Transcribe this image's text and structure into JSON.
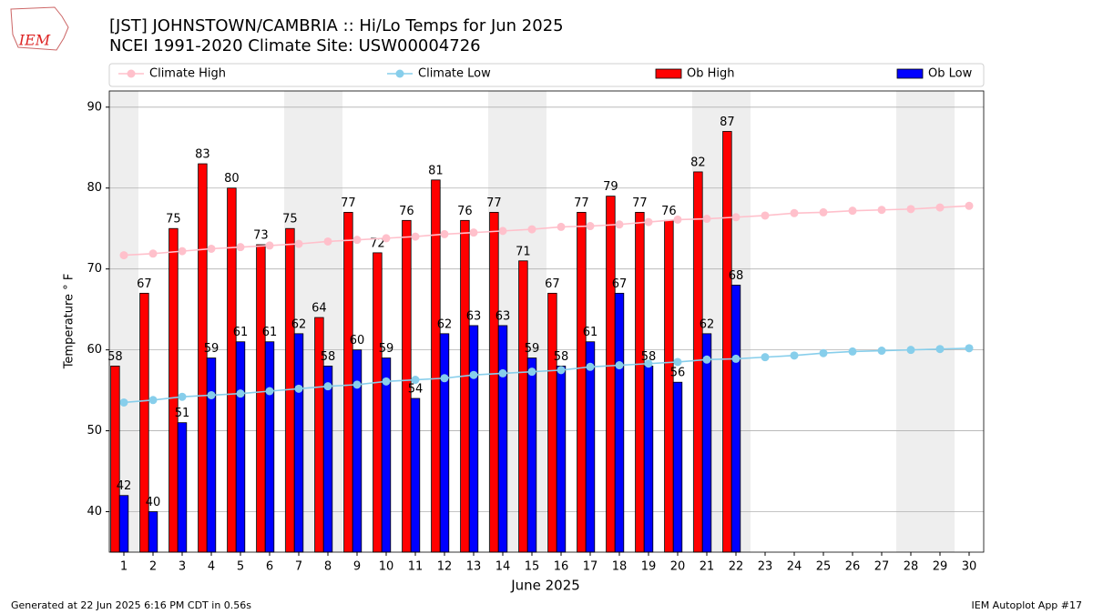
{
  "logo": "IEM",
  "footer": {
    "left": "Generated at 22 Jun 2025 6:16 PM CDT in 0.56s",
    "right": "IEM Autoplot App #17"
  },
  "chart_data": {
    "type": "bar",
    "title": "[JST] JOHNSTOWN/CAMBRIA :: Hi/Lo Temps for Jun 2025",
    "subtitle": "NCEI 1991-2020 Climate Site: USW00004726",
    "x_label": "June 2025",
    "y_label": "Temperature ° F",
    "x": [
      1,
      2,
      3,
      4,
      5,
      6,
      7,
      8,
      9,
      10,
      11,
      12,
      13,
      14,
      15,
      16,
      17,
      18,
      19,
      20,
      21,
      22,
      23,
      24,
      25,
      26,
      27,
      28,
      29,
      30
    ],
    "xlim": [
      0.5,
      30.5
    ],
    "xticks": [
      1,
      2,
      3,
      4,
      5,
      6,
      7,
      8,
      9,
      10,
      11,
      12,
      13,
      14,
      15,
      16,
      17,
      18,
      19,
      20,
      21,
      22,
      23,
      24,
      25,
      26,
      27,
      28,
      29,
      30
    ],
    "ylim": [
      35,
      92
    ],
    "yticks": [
      40,
      50,
      60,
      70,
      80,
      90
    ],
    "grid": true,
    "shaded_days": [
      1,
      7,
      8,
      14,
      15,
      21,
      22,
      28,
      29
    ],
    "legend": "top",
    "series": [
      {
        "name": "Climate High",
        "type": "line",
        "color": "#ffc0cb",
        "values": [
          71.7,
          71.9,
          72.2,
          72.5,
          72.7,
          72.9,
          73.1,
          73.4,
          73.6,
          73.8,
          74.0,
          74.3,
          74.5,
          74.7,
          74.9,
          75.2,
          75.3,
          75.5,
          75.8,
          76.1,
          76.2,
          76.4,
          76.6,
          76.9,
          77.0,
          77.2,
          77.3,
          77.4,
          77.6,
          77.8
        ]
      },
      {
        "name": "Climate Low",
        "type": "line",
        "color": "#87ceeb",
        "values": [
          53.5,
          53.8,
          54.2,
          54.4,
          54.6,
          54.9,
          55.2,
          55.5,
          55.7,
          56.1,
          56.3,
          56.5,
          56.9,
          57.1,
          57.3,
          57.5,
          57.9,
          58.1,
          58.3,
          58.5,
          58.8,
          58.9,
          59.1,
          59.3,
          59.6,
          59.8,
          59.9,
          60.0,
          60.1,
          60.2
        ]
      },
      {
        "name": "Ob High",
        "type": "bar",
        "color": "#ff0000",
        "values": [
          58,
          67,
          75,
          83,
          80,
          73,
          75,
          64,
          77,
          72,
          76,
          81,
          76,
          77,
          71,
          67,
          77,
          79,
          77,
          76,
          82,
          87,
          null,
          null,
          null,
          null,
          null,
          null,
          null,
          null
        ]
      },
      {
        "name": "Ob Low",
        "type": "bar",
        "color": "#0000ff",
        "values": [
          42,
          40,
          51,
          59,
          61,
          61,
          62,
          58,
          60,
          59,
          54,
          62,
          63,
          63,
          59,
          58,
          61,
          67,
          58,
          56,
          62,
          68,
          null,
          null,
          null,
          null,
          null,
          null,
          null,
          null
        ]
      }
    ]
  }
}
